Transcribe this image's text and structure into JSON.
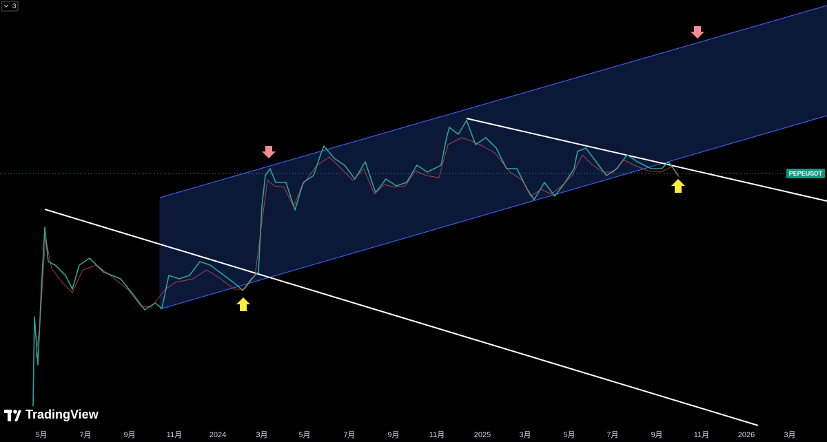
{
  "toolbar": {
    "badge": "3"
  },
  "symbol": "PEPEUSDT",
  "logo": "TradingView",
  "x_axis": {
    "labels": [
      "5月",
      "7月",
      "9月",
      "11月",
      "2024",
      "3月",
      "5月",
      "7月",
      "9月",
      "11月",
      "2025",
      "3月",
      "5月",
      "7月",
      "9月",
      "11月",
      "2026",
      "3月"
    ]
  }
}
